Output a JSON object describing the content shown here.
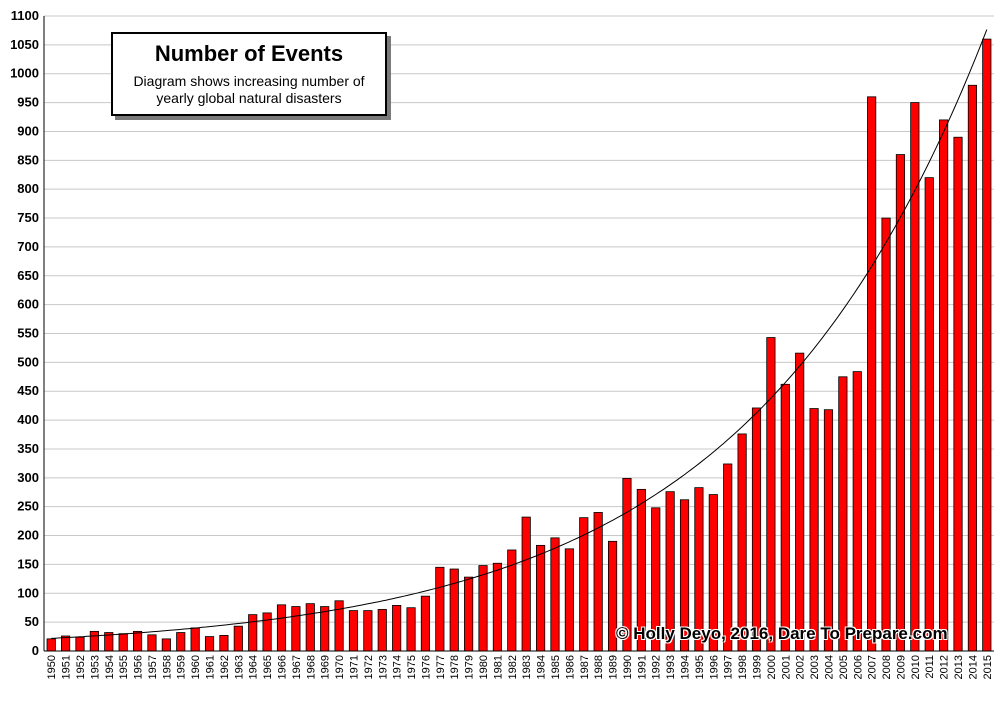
{
  "chart_data": {
    "type": "bar",
    "title": "Number of Events",
    "subtitle": "Diagram shows increasing number of yearly global natural disasters",
    "xlabel": "",
    "ylabel": "",
    "ylim": [
      0,
      1100
    ],
    "ytick_step": 50,
    "grid": true,
    "trendline": "exponential",
    "bar_color": "#ff0000",
    "bar_edge_color": "#000000",
    "credit": "© Holly Deyo, 2016, Dare To Prepare.com",
    "categories": [
      "1950",
      "1951",
      "1952",
      "1953",
      "1954",
      "1955",
      "1956",
      "1957",
      "1958",
      "1959",
      "1960",
      "1961",
      "1962",
      "1963",
      "1964",
      "1965",
      "1966",
      "1967",
      "1968",
      "1969",
      "1970",
      "1971",
      "1972",
      "1973",
      "1974",
      "1975",
      "1976",
      "1977",
      "1978",
      "1979",
      "1980",
      "1981",
      "1982",
      "1983",
      "1984",
      "1985",
      "1986",
      "1987",
      "1988",
      "1989",
      "1990",
      "1991",
      "1992",
      "1993",
      "1994",
      "1995",
      "1996",
      "1997",
      "1998",
      "1999",
      "2000",
      "2001",
      "2002",
      "2003",
      "2004",
      "2005",
      "2006",
      "2007",
      "2008",
      "2009",
      "2010",
      "2011",
      "2012",
      "2013",
      "2014",
      "2015"
    ],
    "values": [
      21,
      26,
      24,
      34,
      32,
      30,
      34,
      28,
      21,
      32,
      40,
      25,
      27,
      43,
      63,
      66,
      80,
      77,
      82,
      77,
      87,
      70,
      70,
      72,
      79,
      75,
      95,
      145,
      142,
      128,
      148,
      152,
      175,
      232,
      183,
      196,
      177,
      231,
      240,
      190,
      299,
      280,
      248,
      276,
      262,
      283,
      271,
      324,
      376,
      421,
      543,
      462,
      516,
      420,
      418,
      475,
      484,
      960,
      750,
      860,
      950,
      820,
      920,
      890,
      980,
      1060
    ]
  }
}
